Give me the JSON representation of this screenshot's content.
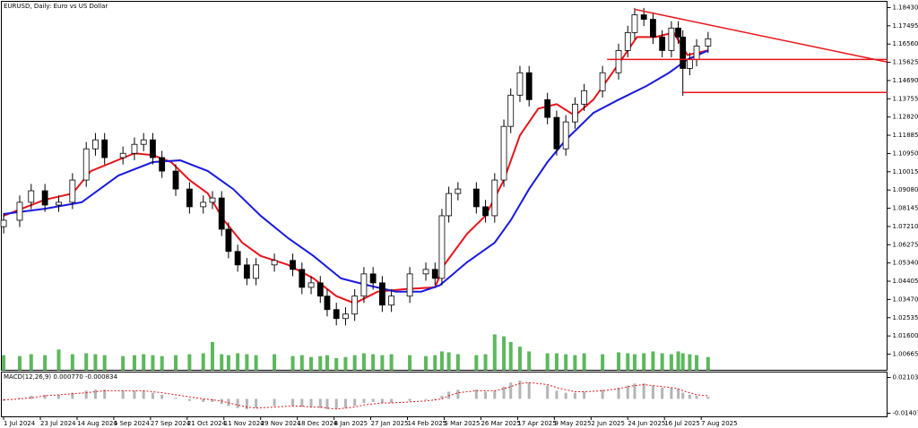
{
  "chart_data": [
    {
      "type": "candlestick",
      "title": "EURUSD, Daily:  Euro vs US Dollar",
      "x": [
        0,
        7,
        12,
        18,
        24,
        30,
        36,
        40,
        44,
        52,
        57,
        61,
        65,
        69,
        75,
        81,
        87,
        91,
        95,
        98,
        102,
        106,
        110,
        118,
        126,
        130,
        134,
        138,
        141,
        145,
        149,
        153,
        157,
        161,
        165,
        169,
        177,
        184,
        188,
        191,
        194,
        198,
        206,
        210,
        214,
        218,
        221,
        225,
        229,
        237,
        241,
        245,
        249,
        253,
        261,
        268,
        272,
        275,
        279,
        283,
        287,
        291,
        294,
        296,
        299,
        302,
        307
      ],
      "open": [
        1.072,
        1.0753,
        1.0845,
        1.0904,
        1.0831,
        1.0845,
        1.0959,
        1.1119,
        1.1165,
        1.1074,
        1.1096,
        1.1142,
        1.1165,
        1.1074,
        1.1005,
        1.0913,
        1.0822,
        1.0845,
        1.0867,
        1.0707,
        1.0593,
        1.0524,
        1.0455,
        1.0524,
        1.0547,
        1.0501,
        1.0409,
        1.0432,
        1.0364,
        1.0295,
        1.0249,
        1.0272,
        1.0364,
        1.0478,
        1.0432,
        1.0318,
        1.0364,
        1.0478,
        1.0501,
        1.0455,
        1.0776,
        1.089,
        1.0913,
        1.0822,
        1.0776,
        1.0959,
        1.1234,
        1.1394,
        1.1509,
        1.1371,
        1.128,
        1.1119,
        1.1257,
        1.1348,
        1.1417,
        1.1509,
        1.1623,
        1.1715,
        1.1806,
        1.1783,
        1.1692,
        1.1623,
        1.1738,
        1.1692,
        1.1531,
        1.1577,
        1.1646
      ],
      "high": [
        1.0788,
        1.088,
        1.0939,
        1.0939,
        1.088,
        1.0994,
        1.1154,
        1.12,
        1.12,
        1.1131,
        1.1177,
        1.12,
        1.12,
        1.1109,
        1.104,
        1.0948,
        1.088,
        1.0902,
        1.0902,
        1.0742,
        1.0628,
        1.0559,
        1.0559,
        1.0582,
        1.0582,
        1.0536,
        1.0467,
        1.0467,
        1.0399,
        1.033,
        1.0307,
        1.0399,
        1.0513,
        1.0513,
        1.0467,
        1.0399,
        1.0513,
        1.0536,
        1.0536,
        1.0811,
        1.0925,
        1.0948,
        1.0948,
        1.0857,
        1.0994,
        1.1269,
        1.1429,
        1.1544,
        1.1544,
        1.1406,
        1.1315,
        1.1292,
        1.1383,
        1.1452,
        1.1544,
        1.1658,
        1.175,
        1.1841,
        1.1841,
        1.1818,
        1.1727,
        1.1773,
        1.1773,
        1.1727,
        1.1612,
        1.1681,
        1.1718
      ],
      "low": [
        1.0685,
        1.0718,
        1.081,
        1.0796,
        1.0796,
        1.081,
        1.0924,
        1.1084,
        1.1039,
        1.1039,
        1.1061,
        1.1107,
        1.1039,
        1.097,
        1.0878,
        1.0787,
        1.0787,
        1.081,
        1.0672,
        1.0558,
        1.0489,
        1.042,
        1.042,
        1.0489,
        1.0466,
        1.0374,
        1.0374,
        1.0329,
        1.026,
        1.0214,
        1.0214,
        1.0237,
        1.0329,
        1.0397,
        1.0283,
        1.0283,
        1.0329,
        1.0443,
        1.042,
        1.042,
        1.0741,
        1.0855,
        1.0787,
        1.0741,
        1.0741,
        1.0924,
        1.1199,
        1.1359,
        1.1336,
        1.1245,
        1.1084,
        1.1084,
        1.1222,
        1.1313,
        1.1382,
        1.1474,
        1.1588,
        1.168,
        1.1748,
        1.1657,
        1.1588,
        1.1588,
        1.1657,
        1.1391,
        1.1496,
        1.1542,
        1.1611
      ],
      "close": [
        1.0753,
        1.0845,
        1.0904,
        1.0831,
        1.0845,
        1.0959,
        1.1119,
        1.1165,
        1.1074,
        1.1096,
        1.1142,
        1.1165,
        1.1074,
        1.1005,
        1.0913,
        1.0822,
        1.0845,
        1.0867,
        1.0707,
        1.0593,
        1.0524,
        1.0455,
        1.0524,
        1.0547,
        1.0501,
        1.0409,
        1.0432,
        1.0364,
        1.0295,
        1.0249,
        1.0272,
        1.0364,
        1.0478,
        1.0432,
        1.0318,
        1.0364,
        1.0478,
        1.0501,
        1.0455,
        1.0776,
        1.089,
        1.0913,
        1.0822,
        1.0776,
        1.0959,
        1.1234,
        1.1394,
        1.1509,
        1.1371,
        1.128,
        1.1119,
        1.1257,
        1.1348,
        1.1417,
        1.1509,
        1.1623,
        1.1715,
        1.1806,
        1.1783,
        1.1692,
        1.1623,
        1.1738,
        1.1692,
        1.1531,
        1.1577,
        1.1646,
        1.1683
      ],
      "volume": [
        16,
        15,
        17,
        16,
        22,
        17,
        18,
        17,
        16,
        15,
        16,
        17,
        16,
        15,
        16,
        17,
        18,
        30,
        17,
        16,
        18,
        17,
        16,
        17,
        15,
        16,
        14,
        15,
        16,
        13,
        14,
        16,
        18,
        17,
        16,
        17,
        16,
        15,
        16,
        20,
        19,
        17,
        16,
        17,
        38,
        36,
        30,
        25,
        20,
        18,
        18,
        17,
        16,
        18,
        17,
        19,
        18,
        17,
        18,
        20,
        18,
        17,
        20,
        18,
        17,
        16,
        14
      ],
      "volume_color": "#5cb85c",
      "series": [
        {
          "color": "#e8141a",
          "x": [
            0,
            18,
            30,
            38,
            57,
            65,
            73,
            81,
            89,
            96,
            104,
            112,
            124,
            135,
            145,
            153,
            163,
            175,
            188,
            192,
            202,
            210,
            218,
            225,
            233,
            241,
            249,
            257,
            268,
            276,
            284,
            292,
            298,
            307
          ],
          "values": [
            1.0776,
            1.0858,
            1.089,
            1.1005,
            1.1096,
            1.1087,
            1.1051,
            1.0959,
            1.089,
            1.0753,
            1.0638,
            1.057,
            1.0524,
            1.0455,
            1.0364,
            1.0327,
            1.0387,
            1.04,
            1.0409,
            1.0524,
            1.0684,
            1.0776,
            1.0959,
            1.1188,
            1.1325,
            1.1348,
            1.1289,
            1.1371,
            1.1554,
            1.1692,
            1.1692,
            1.1715,
            1.16,
            1.1623
          ]
        },
        {
          "color": "#1a1ae0",
          "x": [
            0,
            18,
            34,
            50,
            65,
            77,
            89,
            100,
            112,
            124,
            135,
            147,
            159,
            171,
            182,
            190,
            202,
            214,
            221,
            229,
            237,
            245,
            257,
            268,
            280,
            290,
            298,
            307
          ],
          "values": [
            1.0785,
            1.0812,
            1.0845,
            1.0982,
            1.1051,
            1.106,
            1.1005,
            1.0913,
            1.0776,
            1.0661,
            1.057,
            1.0455,
            1.0419,
            1.0387,
            1.0387,
            1.0419,
            1.0538,
            1.0638,
            1.0753,
            1.0913,
            1.1051,
            1.1165,
            1.1303,
            1.1371,
            1.144,
            1.1509,
            1.1577,
            1.1623
          ]
        }
      ],
      "trendlines": [
        {
          "color": "#e8141a",
          "x": [
            275,
            385
          ],
          "values": [
            1.1834,
            1.1564
          ]
        },
        {
          "color": "#e8141a",
          "x": [
            263,
            385
          ],
          "values": [
            1.1577,
            1.1577
          ]
        },
        {
          "color": "#e8141a",
          "x": [
            296,
            385
          ],
          "values": [
            1.1408,
            1.1408
          ]
        }
      ],
      "xlim": [
        -1,
        385
      ],
      "ylim": [
        0.9984,
        1.1875
      ],
      "yticks": [
        {
          "value": 1.1843,
          "label": "1.18430"
        },
        1.17495,
        {
          "value": 1.1656,
          "label": "1.16560"
        },
        1.15625,
        {
          "value": 1.1469,
          "label": "1.14690"
        },
        1.13755,
        {
          "value": 1.1282,
          "label": "1.12820"
        },
        1.11885,
        {
          "value": 1.1095,
          "label": "1.10950"
        },
        1.10015,
        {
          "value": 1.0908,
          "label": "1.09080"
        },
        1.08145,
        {
          "value": 1.0721,
          "label": "1.07210"
        },
        1.06275,
        {
          "value": 1.0534,
          "label": "1.05340"
        },
        1.04405,
        {
          "value": 1.0347,
          "label": "1.03470"
        },
        1.02535,
        {
          "value": 1.016,
          "label": "1.01600"
        },
        1.00665
      ],
      "xticks": [
        {
          "value": 0,
          "label": "1 Jul 2024"
        },
        {
          "value": 16,
          "label": "23 Jul 2024"
        },
        {
          "value": 32,
          "label": "14 Aug 2024"
        },
        {
          "value": 48,
          "label": "5 Sep 2024"
        },
        {
          "value": 64,
          "label": "27 Sep 2024"
        },
        {
          "value": 80,
          "label": "21 Oct 2024"
        },
        {
          "value": 96,
          "label": "11 Nov 2024"
        },
        {
          "value": 112,
          "label": "29 Nov 2024"
        },
        {
          "value": 128,
          "label": "18 Dec 2024"
        },
        {
          "value": 144,
          "label": "8 Jan 2025"
        },
        {
          "value": 160,
          "label": "27 Jan 2025"
        },
        {
          "value": 176,
          "label": "14 Feb 2025"
        },
        {
          "value": 192,
          "label": "5 Mar 2025"
        },
        {
          "value": 208,
          "label": "26 Mar 2025"
        },
        {
          "value": 224,
          "label": "17 Apr 2025"
        },
        {
          "value": 240,
          "label": "9 May 2025"
        },
        {
          "value": 256,
          "label": "2 Jun 2025"
        },
        {
          "value": 272,
          "label": "24 Jun 2025"
        },
        {
          "value": 288,
          "label": "16 Jul 2025"
        },
        {
          "value": 304,
          "label": "7 Aug 2025"
        }
      ]
    },
    {
      "type": "macd",
      "title": "MACD(12,26,9) 0.000770 -0.000834",
      "x": [
        0,
        7,
        12,
        18,
        24,
        30,
        36,
        40,
        44,
        52,
        57,
        61,
        65,
        69,
        75,
        81,
        87,
        91,
        95,
        98,
        102,
        106,
        110,
        118,
        126,
        130,
        134,
        138,
        141,
        145,
        149,
        153,
        157,
        161,
        165,
        169,
        177,
        184,
        188,
        191,
        194,
        198,
        206,
        210,
        214,
        218,
        221,
        225,
        229,
        237,
        241,
        245,
        249,
        253,
        261,
        268,
        272,
        275,
        279,
        283,
        287,
        291,
        294,
        296,
        299,
        302,
        307
      ],
      "histogram": [
        -0.002,
        0.001,
        0.003,
        0.004,
        0.004,
        0.006,
        0.008,
        0.009,
        0.009,
        0.008,
        0.008,
        0.008,
        0.006,
        0.004,
        0.001,
        -0.002,
        -0.003,
        -0.003,
        -0.005,
        -0.007,
        -0.009,
        -0.01,
        -0.009,
        -0.007,
        -0.007,
        -0.008,
        -0.008,
        -0.009,
        -0.01,
        -0.01,
        -0.009,
        -0.007,
        -0.004,
        -0.003,
        -0.004,
        -0.004,
        -0.002,
        -0.001,
        -0.001,
        0.003,
        0.007,
        0.009,
        0.009,
        0.007,
        0.008,
        0.012,
        0.016,
        0.018,
        0.016,
        0.013,
        0.008,
        0.006,
        0.006,
        0.007,
        0.009,
        0.011,
        0.013,
        0.015,
        0.015,
        0.013,
        0.011,
        0.011,
        0.01,
        0.006,
        0.004,
        0.003,
        0.002
      ],
      "histogram_color": "#b4b4b4",
      "signal": [
        -0.001,
        0.0,
        0.001,
        0.003,
        0.004,
        0.005,
        0.006,
        0.007,
        0.008,
        0.008,
        0.008,
        0.008,
        0.007,
        0.006,
        0.004,
        0.002,
        0.0,
        -0.001,
        -0.002,
        -0.004,
        -0.006,
        -0.008,
        -0.009,
        -0.008,
        -0.007,
        -0.007,
        -0.008,
        -0.008,
        -0.009,
        -0.01,
        -0.009,
        -0.008,
        -0.006,
        -0.005,
        -0.004,
        -0.004,
        -0.003,
        -0.002,
        -0.001,
        0.0,
        0.003,
        0.006,
        0.008,
        0.008,
        0.008,
        0.01,
        0.012,
        0.015,
        0.016,
        0.014,
        0.011,
        0.009,
        0.007,
        0.007,
        0.008,
        0.01,
        0.012,
        0.013,
        0.014,
        0.013,
        0.012,
        0.011,
        0.01,
        0.008,
        0.006,
        0.004,
        0.003
      ],
      "signal_color": "#e8141a",
      "xlim": [
        -1,
        385
      ],
      "ylim": [
        -0.01758,
        0.0263
      ],
      "yticks": [
        0.021032,
        -0.014073
      ]
    }
  ]
}
